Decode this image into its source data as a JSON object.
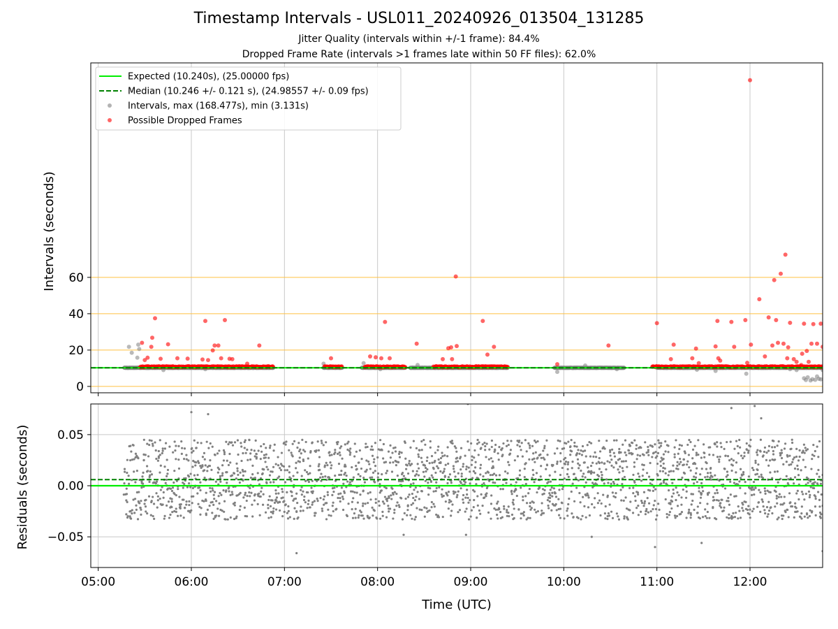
{
  "title": "Timestamp Intervals - USL011_20240926_013504_131285",
  "subtitle_1": "Jitter Quality (intervals within +/-1 frame): 84.4%",
  "subtitle_2": "Dropped Frame Rate (intervals >1 frames late within 50 FF files): 62.0%",
  "colors": {
    "expected": "#00ee00",
    "median": "#008000",
    "intervals": "#808080",
    "dropped": "#ff0000",
    "hline": "#ffc040",
    "grid": "#c8c8c8"
  },
  "chart_data": [
    {
      "type": "scatter",
      "panel": "intervals",
      "ylabel": "Intervals (seconds)",
      "yticks": [
        0,
        20,
        40,
        60
      ],
      "ylim": [
        -3.5,
        178
      ],
      "xlim_hours": [
        4.92,
        12.78
      ],
      "grid": true,
      "horizontal_lines": [
        0,
        20,
        40,
        60
      ],
      "legend_position": "top-left",
      "legend": [
        {
          "key": "expected",
          "label": "Expected (10.240s), (25.00000 fps)"
        },
        {
          "key": "median",
          "label": "Median (10.246 +/- 0.121 s), (24.98557 +/- 0.09 fps)"
        },
        {
          "key": "intervals",
          "label": "Intervals, max (168.477s), min (3.131s)"
        },
        {
          "key": "dropped",
          "label": "Possible Dropped Frames"
        }
      ],
      "expected_interval": 10.24,
      "median_interval": 10.246,
      "interval_max": 168.477,
      "interval_min": 3.131,
      "normal_runs": [
        [
          5.28,
          6.88
        ],
        [
          7.42,
          7.62
        ],
        [
          7.83,
          8.3
        ],
        [
          8.35,
          9.4
        ],
        [
          9.9,
          10.65
        ],
        [
          11.0,
          12.78
        ]
      ],
      "dropped_runs": [
        [
          5.45,
          6.88
        ],
        [
          7.43,
          7.62
        ],
        [
          7.86,
          8.3
        ],
        [
          8.6,
          9.4
        ],
        [
          10.95,
          12.78
        ]
      ],
      "gray_outliers": [
        [
          5.33,
          21.8
        ],
        [
          5.36,
          18.5
        ],
        [
          5.43,
          23.0
        ],
        [
          5.44,
          20.6
        ],
        [
          5.42,
          15.8
        ],
        [
          5.7,
          9.0
        ],
        [
          6.15,
          9.5
        ],
        [
          7.42,
          12.5
        ],
        [
          7.85,
          12.8
        ],
        [
          8.03,
          9.5
        ],
        [
          8.43,
          11.8
        ],
        [
          9.93,
          8.0
        ],
        [
          10.23,
          11.5
        ],
        [
          10.57,
          9.5
        ],
        [
          11.43,
          9.2
        ],
        [
          11.63,
          8.5
        ],
        [
          11.96,
          7.0
        ],
        [
          12.43,
          9.5
        ],
        [
          12.5,
          9.0
        ],
        [
          12.58,
          4.5
        ],
        [
          12.6,
          3.5
        ],
        [
          12.62,
          5.0
        ],
        [
          12.65,
          3.3
        ],
        [
          12.67,
          4.0
        ],
        [
          12.7,
          3.6
        ],
        [
          12.72,
          5.5
        ],
        [
          12.74,
          4.2
        ],
        [
          12.76,
          3.9
        ],
        [
          12.78,
          9.0
        ]
      ],
      "dropped_outliers": [
        [
          5.47,
          24.0
        ],
        [
          5.5,
          14.5
        ],
        [
          5.53,
          15.8
        ],
        [
          5.57,
          21.8
        ],
        [
          5.58,
          26.8
        ],
        [
          5.61,
          37.5
        ],
        [
          5.67,
          15.2
        ],
        [
          5.75,
          23.2
        ],
        [
          5.85,
          15.5
        ],
        [
          5.96,
          15.3
        ],
        [
          6.12,
          14.8
        ],
        [
          6.15,
          36.0
        ],
        [
          6.18,
          14.5
        ],
        [
          6.23,
          19.8
        ],
        [
          6.25,
          22.5
        ],
        [
          6.29,
          22.5
        ],
        [
          6.32,
          15.5
        ],
        [
          6.36,
          36.5
        ],
        [
          6.41,
          15.2
        ],
        [
          6.44,
          15.0
        ],
        [
          6.6,
          12.5
        ],
        [
          6.73,
          22.5
        ],
        [
          7.5,
          15.5
        ],
        [
          7.92,
          16.5
        ],
        [
          7.98,
          16.0
        ],
        [
          8.04,
          15.5
        ],
        [
          8.08,
          35.5
        ],
        [
          8.13,
          15.5
        ],
        [
          8.42,
          23.5
        ],
        [
          8.7,
          15.0
        ],
        [
          8.76,
          21.0
        ],
        [
          8.79,
          21.5
        ],
        [
          8.84,
          60.5
        ],
        [
          8.85,
          22.2
        ],
        [
          8.8,
          15.0
        ],
        [
          9.13,
          36.0
        ],
        [
          9.18,
          17.5
        ],
        [
          9.25,
          21.8
        ],
        [
          9.93,
          12.2
        ],
        [
          10.48,
          22.5
        ],
        [
          11.0,
          34.8
        ],
        [
          11.15,
          15.0
        ],
        [
          11.18,
          23.0
        ],
        [
          11.38,
          15.5
        ],
        [
          11.42,
          20.8
        ],
        [
          11.66,
          15.5
        ],
        [
          11.63,
          22.0
        ],
        [
          11.65,
          36.0
        ],
        [
          11.68,
          14.2
        ],
        [
          11.8,
          35.5
        ],
        [
          11.83,
          21.8
        ],
        [
          11.95,
          36.5
        ],
        [
          11.97,
          13.0
        ],
        [
          12.0,
          168.5
        ],
        [
          12.01,
          23.0
        ],
        [
          12.1,
          48.0
        ],
        [
          12.16,
          16.5
        ],
        [
          12.2,
          38.0
        ],
        [
          12.24,
          22.5
        ],
        [
          12.26,
          58.5
        ],
        [
          12.28,
          36.5
        ],
        [
          12.3,
          24.0
        ],
        [
          12.33,
          62.0
        ],
        [
          12.36,
          23.5
        ],
        [
          12.38,
          72.5
        ],
        [
          12.41,
          21.5
        ],
        [
          12.43,
          35.0
        ],
        [
          12.47,
          15.0
        ],
        [
          12.5,
          13.5
        ],
        [
          12.55,
          11.8
        ],
        [
          12.56,
          18.0
        ],
        [
          12.58,
          34.5
        ],
        [
          12.61,
          19.5
        ],
        [
          12.63,
          13.5
        ],
        [
          12.66,
          23.5
        ],
        [
          12.68,
          34.3
        ],
        [
          12.72,
          23.5
        ],
        [
          12.76,
          34.5
        ],
        [
          12.78,
          21.8
        ],
        [
          12.4,
          15.5
        ],
        [
          11.45,
          12.8
        ]
      ]
    },
    {
      "type": "scatter",
      "panel": "residuals",
      "xlabel": "Time (UTC)",
      "ylabel": "Residuals (seconds)",
      "yticks": [
        -0.05,
        0.0,
        0.05
      ],
      "ytick_labels": [
        "−0.05",
        "0.00",
        "0.05"
      ],
      "ylim": [
        -0.08,
        0.08
      ],
      "xlim_hours": [
        4.92,
        12.78
      ],
      "xticks": [
        5,
        6,
        7,
        8,
        9,
        10,
        11,
        12
      ],
      "xtick_labels": [
        "05:00",
        "06:00",
        "07:00",
        "08:00",
        "09:00",
        "10:00",
        "11:00",
        "12:00"
      ],
      "grid": true,
      "residual_x_range": [
        5.28,
        12.78
      ],
      "residual_typical_range": [
        -0.033,
        0.045
      ],
      "expected_residual": 0.0,
      "median_residual": 0.006,
      "residual_outliers": [
        [
          6.0,
          0.072
        ],
        [
          6.18,
          0.07
        ],
        [
          7.13,
          -0.066
        ],
        [
          9.95,
          0.082
        ],
        [
          10.3,
          -0.05
        ],
        [
          10.98,
          -0.06
        ],
        [
          11.48,
          -0.056
        ],
        [
          11.8,
          0.076
        ],
        [
          12.05,
          0.078
        ],
        [
          12.12,
          0.066
        ],
        [
          12.78,
          -0.064
        ],
        [
          8.95,
          -0.048
        ],
        [
          8.28,
          -0.048
        ],
        [
          8.97,
          0.08
        ]
      ]
    }
  ]
}
